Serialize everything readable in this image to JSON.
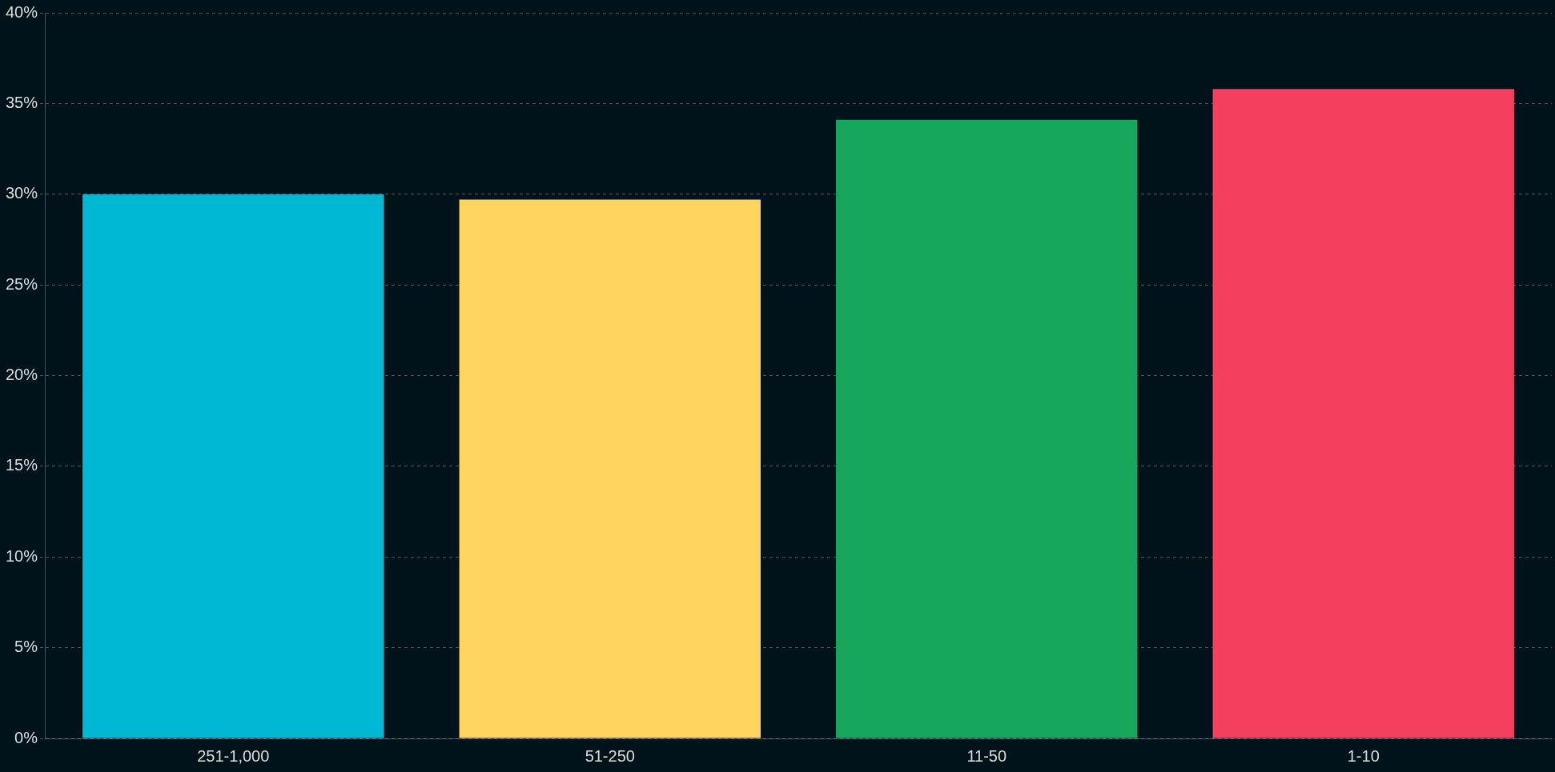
{
  "chart_data": {
    "type": "bar",
    "categories": [
      "251-1,000",
      "51-250",
      "11-50",
      "1-10"
    ],
    "values": [
      30.0,
      29.7,
      34.1,
      35.8
    ],
    "colors": [
      "#00b8d4",
      "#ffd45f",
      "#16a75c",
      "#f43f5f"
    ],
    "ylim": [
      0,
      40
    ],
    "yticks": [
      {
        "value": 0,
        "label": "0%"
      },
      {
        "value": 5,
        "label": "5%"
      },
      {
        "value": 10,
        "label": "10%"
      },
      {
        "value": 15,
        "label": "15%"
      },
      {
        "value": 20,
        "label": "20%"
      },
      {
        "value": 25,
        "label": "25%"
      },
      {
        "value": 30,
        "label": "30%"
      },
      {
        "value": 35,
        "label": "35%"
      },
      {
        "value": 40,
        "label": "40%"
      }
    ],
    "grid": "y",
    "legend": false
  }
}
